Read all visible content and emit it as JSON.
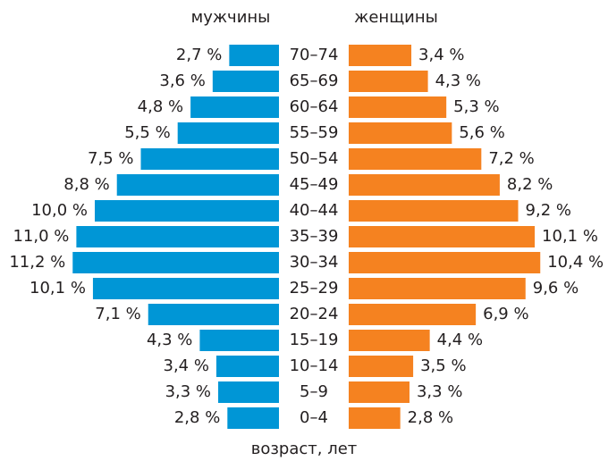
{
  "chart_data": {
    "type": "bar",
    "orientation": "horizontal",
    "xlabel": "возраст, лет",
    "categories": [
      "70–74",
      "65–69",
      "60–64",
      "55–59",
      "50–54",
      "45–49",
      "40–44",
      "35–39",
      "30–34",
      "25–29",
      "20–24",
      "15–19",
      "10–14",
      "5–9",
      "0–4"
    ],
    "series": [
      {
        "name": "мужчины",
        "color": "#0096d6",
        "values": [
          2.7,
          3.6,
          4.8,
          5.5,
          7.5,
          8.8,
          10.0,
          11.0,
          11.2,
          10.1,
          7.1,
          4.3,
          3.4,
          3.3,
          2.8
        ],
        "value_labels": [
          "2,7 %",
          "3,6 %",
          "4,8 %",
          "5,5 %",
          "7,5 %",
          "8,8 %",
          "10,0 %",
          "11,0 %",
          "11,2 %",
          "10,1 %",
          "7,1 %",
          "4,3 %",
          "3,4 %",
          "3,3 %",
          "2,8 %"
        ]
      },
      {
        "name": "женщины",
        "color": "#f58220",
        "values": [
          3.4,
          4.3,
          5.3,
          5.6,
          7.2,
          8.2,
          9.2,
          10.1,
          10.4,
          9.6,
          6.9,
          4.4,
          3.5,
          3.3,
          2.8
        ],
        "value_labels": [
          "3,4 %",
          "4,3 %",
          "5,3 %",
          "5,6 %",
          "7,2 %",
          "8,2 %",
          "9,2 %",
          "10,1 %",
          "10,4 %",
          "9,6 %",
          "6,9 %",
          "4,4 %",
          "3,5 %",
          "3,3 %",
          "2,8 %"
        ]
      }
    ]
  }
}
